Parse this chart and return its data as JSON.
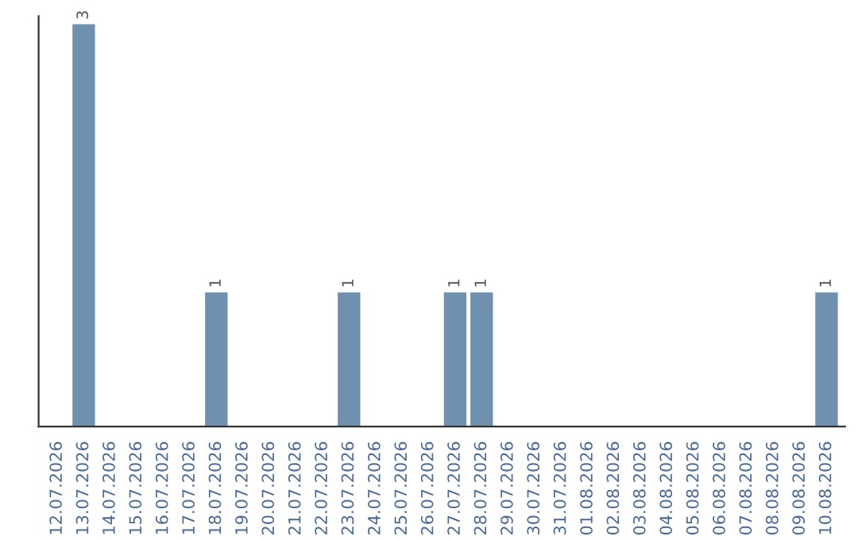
{
  "chart_data": {
    "type": "bar",
    "categories": [
      "12.07.2026",
      "13.07.2026",
      "14.07.2026",
      "15.07.2026",
      "16.07.2026",
      "17.07.2026",
      "18.07.2026",
      "19.07.2026",
      "20.07.2026",
      "21.07.2026",
      "22.07.2026",
      "23.07.2026",
      "24.07.2026",
      "25.07.2026",
      "26.07.2026",
      "27.07.2026",
      "28.07.2026",
      "29.07.2026",
      "30.07.2026",
      "31.07.2026",
      "01.08.2026",
      "02.08.2026",
      "03.08.2026",
      "04.08.2026",
      "05.08.2026",
      "06.08.2026",
      "07.08.2026",
      "08.08.2026",
      "09.08.2026",
      "10.08.2026"
    ],
    "values": [
      0,
      3,
      0,
      0,
      0,
      0,
      1,
      0,
      0,
      0,
      0,
      1,
      0,
      0,
      0,
      1,
      1,
      0,
      0,
      0,
      0,
      0,
      0,
      0,
      0,
      0,
      0,
      0,
      0,
      1
    ],
    "value_labels": [
      null,
      "3",
      null,
      null,
      null,
      null,
      "1",
      null,
      null,
      null,
      null,
      "1",
      null,
      null,
      null,
      "1",
      "1",
      null,
      null,
      null,
      null,
      null,
      null,
      null,
      null,
      null,
      null,
      null,
      null,
      "1"
    ],
    "color": "#7090b0",
    "grid": false,
    "legend": false
  }
}
